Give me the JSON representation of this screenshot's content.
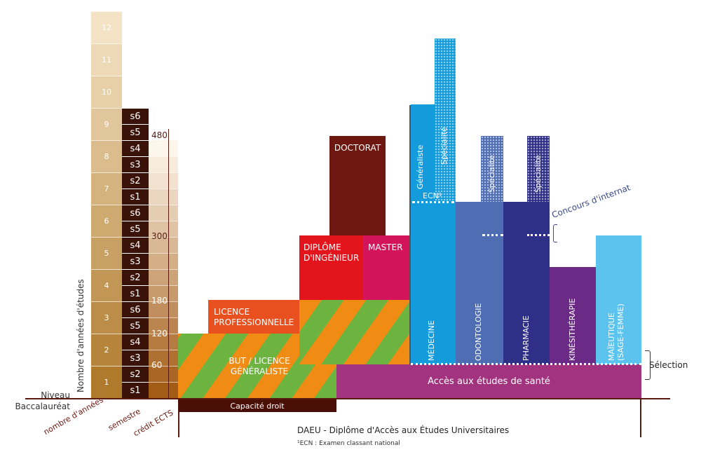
{
  "axis": {
    "left_title": "Nombre d'années d'études",
    "baseline_label": "Niveau Baccalauréat",
    "bottom_labels": [
      "nombre d'années",
      "semestre",
      "crédit ECTS"
    ]
  },
  "years": [
    "1",
    "2",
    "3",
    "4",
    "5",
    "6",
    "7",
    "8",
    "9",
    "10",
    "11",
    "12"
  ],
  "semesters": [
    "s1",
    "s2",
    "s3",
    "s4",
    "s5",
    "s6",
    "s1",
    "s2",
    "s3",
    "s4",
    "s5",
    "s6",
    "s1",
    "s2",
    "s3",
    "s4",
    "s5",
    "s6"
  ],
  "ects": [
    "60",
    "120",
    "180",
    "300",
    "480"
  ],
  "blocks": {
    "but_licence": "BUT / LICENCE GÉNÉRALISTE",
    "licence_pro": "LICENCE PROFESSIONNELLE",
    "diplome_ingenieur": "DIPLÔME D'INGÉNIEUR",
    "master": "MASTER",
    "doctorat": "DOCTORAT",
    "acces_sante": "Accès aux études de santé",
    "capacite_droit": "Capacité droit",
    "medecine": "MÉDECINE",
    "odontologie": "ODONTOLOGIE",
    "pharmacie": "PHARMACIE",
    "kinesitherapie": "KINÉSITHÉRAPIE",
    "maieutique": "MAÏEUTIQUE (SAGE-FEMME)",
    "generaliste": "Généraliste",
    "specialite": "Spécialité",
    "ecn": "ECN¹"
  },
  "annotations": {
    "concours_internat": "Concours d'internat",
    "selection": "Sélection",
    "daeu": "DAEU - Diplôme d'Accès aux Études Universitaires",
    "footnote": "¹ECN : Examen classant national"
  },
  "colors": {
    "year_top": "#f3e3c4",
    "year_bottom": "#b07a2c",
    "semester": "#3b1208",
    "ects_top": "#fdf6ea",
    "ects_bottom": "#a35c16",
    "stripe_green": "#6db33f",
    "stripe_orange": "#f08c14",
    "licence_pro": "#e9501f",
    "ingenieur": "#e3141c",
    "master": "#d4145a",
    "doctorat": "#6e1710",
    "acces_sante": "#a2337f",
    "capacite": "#4a0f06",
    "medecine": "#149bdc",
    "odontologie": "#4f6db3",
    "pharmacie": "#2e2f86",
    "kine": "#6b2a86",
    "maieutique": "#5cc3ee",
    "internat_label": "#3a4a8c"
  }
}
